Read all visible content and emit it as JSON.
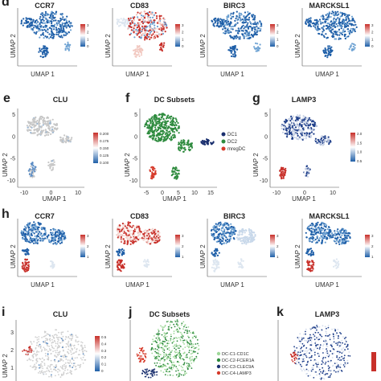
{
  "labels": {
    "d": "d",
    "e": "e",
    "f": "f",
    "g": "g",
    "h": "h",
    "i": "i",
    "j": "j",
    "k": "k"
  },
  "row1": [
    {
      "title": "CCR7"
    },
    {
      "title": "CD83"
    },
    {
      "title": "BIRC3"
    },
    {
      "title": "MARCKSL1"
    }
  ],
  "row1_axes": {
    "x": "UMAP 1",
    "y": "UMAP 2"
  },
  "row1_scale": [
    "3",
    "2",
    "1",
    "0"
  ],
  "panel_e": {
    "title": "CLU",
    "x": "UMAP 1",
    "y": "UMAP 2",
    "xticks": [
      "-10",
      "0",
      "10"
    ],
    "yticks": [
      "5",
      "0",
      "-5",
      "-10"
    ],
    "scale": [
      "0.200",
      "0.175",
      "0.150",
      "0.125",
      "0.100"
    ]
  },
  "panel_f": {
    "title": "DC Subsets",
    "x": "UMAP 1",
    "y": "UMAP 2",
    "xticks": [
      "-5",
      "0",
      "5",
      "10",
      "15"
    ],
    "yticks": [
      "5",
      "0",
      "-5",
      "-10"
    ],
    "legend": [
      {
        "label": "DC1",
        "color": "#1a2f6e"
      },
      {
        "label": "DC2",
        "color": "#2e8b3e"
      },
      {
        "label": "mregDC",
        "color": "#d63a2a"
      }
    ]
  },
  "panel_g": {
    "title": "LAMP3",
    "x": "UMAP 1",
    "y": "UMAP 2",
    "xticks": [
      "-10",
      "0",
      "10"
    ],
    "yticks": [
      "5",
      "0",
      "-5",
      "-10"
    ],
    "scale": [
      "2.0",
      "1.5",
      "1.0",
      "0.5"
    ]
  },
  "row_h": [
    {
      "title": "CCR7"
    },
    {
      "title": "CD83"
    },
    {
      "title": "BIRC3"
    },
    {
      "title": "MARCKSL1"
    }
  ],
  "row_h_axes": {
    "x": "UMAP 1",
    "y": "UMAP 2"
  },
  "panel_i": {
    "title": "CLU",
    "y": "UMAP 2",
    "yticks": [
      "3",
      "2",
      "1"
    ],
    "scale": [
      "0.5",
      "0.4",
      "0.3",
      "0.2",
      "0.1",
      "0"
    ]
  },
  "panel_j": {
    "title": "DC Subsets",
    "legend": [
      {
        "label": "DC-C1-CD1C",
        "color": "#9fd89a"
      },
      {
        "label": "DC-C2-FCER1A",
        "color": "#2e8b3e"
      },
      {
        "label": "DC-C3-CLEC9A",
        "color": "#1a2f6e"
      },
      {
        "label": "DC-C4-LAMP3",
        "color": "#d63a2a"
      }
    ]
  },
  "panel_k": {
    "title": "LAMP3"
  },
  "colors": {
    "blue": "#1f5fa8",
    "red": "#c8302a",
    "grey": "#bdbdbd",
    "green": "#2e8b3e",
    "navy": "#1a2f6e"
  }
}
